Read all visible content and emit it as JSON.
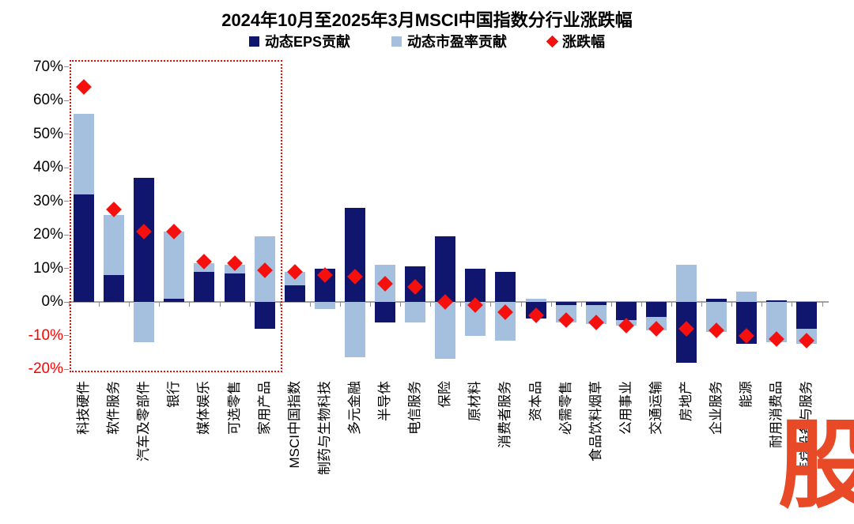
{
  "title": "2024年10月至2025年3月MSCI中国指数分行业涨跌幅",
  "watermark": "股",
  "colors": {
    "eps_bar": "#10156e",
    "pe_bar": "#a5c0de",
    "marker": "#f5100e",
    "axis": "#a3a3a3",
    "negative_tick_label": "#ff0000",
    "highlight_box": "#ff0000",
    "watermark": "#e84a27"
  },
  "legend": [
    {
      "label": "动态EPS贡献",
      "marker": "square",
      "color": "#10156e"
    },
    {
      "label": "动态市盈率贡献",
      "marker": "square",
      "color": "#a5c0de"
    },
    {
      "label": "涨跌幅",
      "marker": "diamond",
      "color": "#f5100e"
    }
  ],
  "chart_data": {
    "type": "bar",
    "stacked": true,
    "title": "2024年10月至2025年3月MSCI中国指数分行业涨跌幅",
    "xlabel": "",
    "ylabel": "",
    "ylim": [
      -20,
      70
    ],
    "y_ticks": [
      70,
      60,
      50,
      40,
      30,
      20,
      10,
      0,
      -10,
      -20
    ],
    "y_tick_suffix": "%",
    "grid": false,
    "legend_position": "top",
    "categories": [
      "科技硬件",
      "软件服务",
      "汽车及零部件",
      "银行",
      "媒体娱乐",
      "可选零售",
      "家用产品",
      "MSCI中国指数",
      "制药与生物科技",
      "多元金融",
      "半导体",
      "电信服务",
      "保险",
      "原材料",
      "消费者服务",
      "资本品",
      "必需零售",
      "食品饮料烟草",
      "公用事业",
      "交通运输",
      "房地产",
      "企业服务",
      "能源",
      "耐用消费品",
      "医疗设备与服务"
    ],
    "series": [
      {
        "name": "动态EPS贡献",
        "color": "#10156e",
        "values": [
          32,
          8,
          37,
          1,
          9,
          8.5,
          -8,
          5,
          10,
          28,
          -6,
          10.5,
          19.5,
          10,
          9,
          -5,
          -1,
          -1,
          -5.5,
          -4.5,
          -18,
          1,
          -12.5,
          0.5,
          -8
        ]
      },
      {
        "name": "动态市盈率贡献",
        "color": "#a5c0de",
        "values": [
          24,
          18,
          -12,
          20,
          2.5,
          2.5,
          19.5,
          4,
          -2,
          -16.5,
          11,
          -6,
          -17,
          -10,
          -11.5,
          1,
          -5,
          -5.5,
          -1.5,
          -4,
          11,
          -9,
          3,
          -12,
          -4.5
        ]
      }
    ],
    "markers": {
      "name": "涨跌幅",
      "color": "#f5100e",
      "values": [
        64,
        27.5,
        21,
        21,
        12,
        11.5,
        9.5,
        9,
        8,
        7.5,
        5.5,
        4.5,
        0,
        -1,
        -3,
        -4,
        -5.5,
        -6,
        -7,
        -8,
        -8,
        -8.5,
        -10,
        -11,
        -11.5
      ]
    },
    "highlight_box": {
      "from_category": "科技硬件",
      "to_category": "家用产品"
    }
  }
}
